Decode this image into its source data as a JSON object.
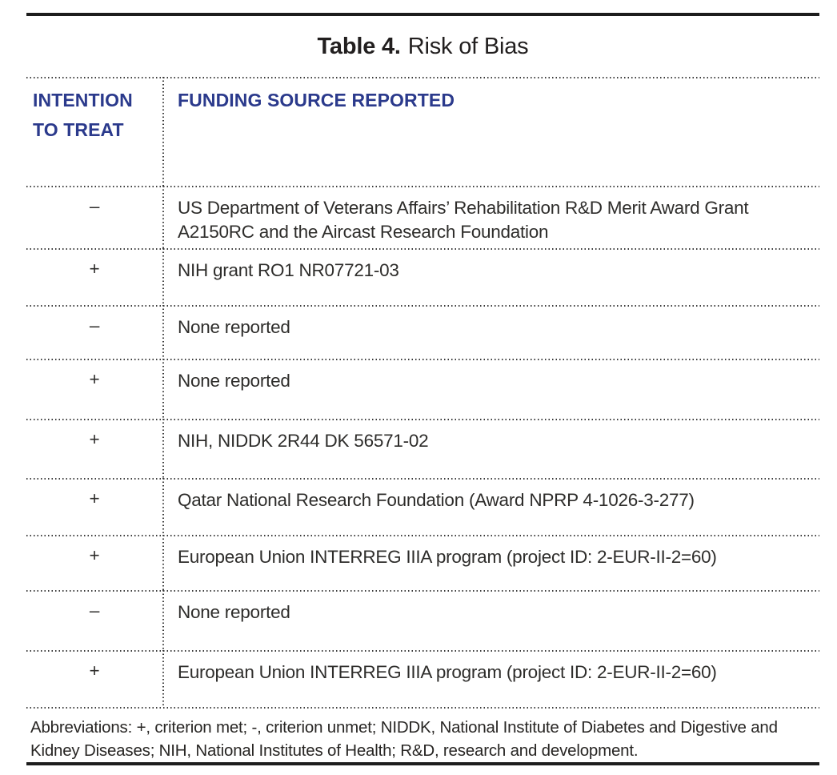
{
  "page": {
    "title_bold": "Table 4.",
    "title_rest": "Risk of Bias"
  },
  "table": {
    "columns": [
      {
        "header": "INTENTION TO TREAT"
      },
      {
        "header": "FUNDING SOURCE REPORTED"
      }
    ],
    "rows": [
      {
        "itt": "–",
        "funding": "US Department of Veterans Affairs’ Rehabilitation R&D Merit Award Grant A2150RC and the Aircast Research Foundation"
      },
      {
        "itt": "+",
        "funding": "NIH grant RO1 NR07721-03"
      },
      {
        "itt": "–",
        "funding": "None reported"
      },
      {
        "itt": "+",
        "funding": "None reported"
      },
      {
        "itt": "+",
        "funding": "NIH, NIDDK 2R44 DK 56571-02"
      },
      {
        "itt": "+",
        "funding": "Qatar National Research Foundation (Award NPRP 4-1026-3-277)"
      },
      {
        "itt": "+",
        "funding": "European Union INTERREG IIIA program (project ID: 2-EUR-II-2=60)"
      },
      {
        "itt": "–",
        "funding": "None reported"
      },
      {
        "itt": "+",
        "funding": "European Union INTERREG IIIA program (project ID: 2-EUR-II-2=60)"
      }
    ],
    "footnote": "Abbreviations: +, criterion met; -, criterion unmet; NIDDK, National Institute of Diabetes and Digestive and Kidney Diseases; NIH, National Institutes of Health; R&D, research and development."
  },
  "colors": {
    "header_text": "#2b3a8c",
    "body_text": "#2e2d2b",
    "rule": "#1d1d1d"
  }
}
